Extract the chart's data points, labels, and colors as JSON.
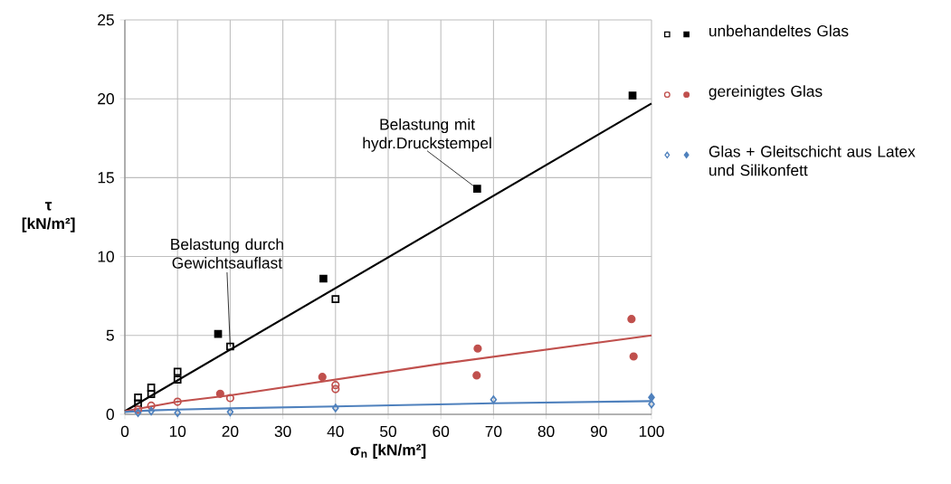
{
  "chart_data": {
    "type": "scatter",
    "xlabel": "σ$_{n}$ [kN/m²]",
    "ylabel": "τ [kN/m²]",
    "xlim": [
      0,
      100
    ],
    "ylim": [
      0,
      25
    ],
    "xticks": [
      0,
      10,
      20,
      30,
      40,
      50,
      60,
      70,
      80,
      90,
      100
    ],
    "yticks": [
      0,
      5,
      10,
      15,
      20,
      25
    ],
    "grid": true,
    "legend": "right",
    "series": [
      {
        "name": "unbehandeltes Glas",
        "type": "scatter",
        "marker": "square",
        "color": "#000000",
        "x": [
          2.5,
          2.5,
          5,
          5,
          10,
          10,
          20,
          40
        ],
        "values": [
          1.07,
          0.7,
          1.7,
          1.28,
          2.7,
          2.2,
          4.3,
          7.3
        ]
      },
      {
        "type": "scatter",
        "marker": "square",
        "color": "#000000",
        "x": [
          17.7,
          37.7,
          66.9,
          96.4
        ],
        "values": [
          5.1,
          8.6,
          14.3,
          20.2
        ]
      },
      {
        "name": "gereinigtes Glas",
        "type": "scatter",
        "marker": "circle",
        "color": "#c0504d",
        "x": [
          2.5,
          5,
          10,
          20,
          40,
          40
        ],
        "values": [
          0.3,
          0.55,
          0.8,
          1.03,
          1.85,
          1.6
        ]
      },
      {
        "type": "scatter",
        "marker": "circle",
        "color": "#c0504d",
        "x": [
          18.1,
          37.5,
          67,
          66.8,
          96.2,
          96.6
        ],
        "values": [
          1.3,
          2.37,
          4.17,
          2.47,
          6.04,
          3.67
        ]
      },
      {
        "name": "Glas + Gleitschicht aus Latex und Silikonfett",
        "type": "scatter",
        "marker": "diamond",
        "color": "#4f81bd",
        "x": [
          2.5,
          5,
          10,
          20,
          40,
          70,
          100
        ],
        "values": [
          0.1,
          0.2,
          0.1,
          0.15,
          0.4,
          0.93,
          0.65
        ]
      },
      {
        "type": "scatter",
        "marker": "diamond",
        "color": "#4f81bd",
        "x": [
          100
        ],
        "values": [
          1.07
        ]
      },
      {
        "type": "line",
        "marker": "none",
        "color": "#000000",
        "x": [
          0,
          100
        ],
        "values": [
          0.2,
          19.7
        ]
      },
      {
        "type": "line",
        "marker": "none",
        "color": "#c0504d",
        "x": [
          0,
          10,
          20,
          40,
          60,
          100
        ],
        "values": [
          0.2,
          0.8,
          1.2,
          2.2,
          3.2,
          5.0
        ]
      },
      {
        "type": "line",
        "marker": "none",
        "color": "#4f81bd",
        "x": [
          0,
          5,
          10,
          20,
          40,
          55,
          70,
          100
        ],
        "values": [
          0.15,
          0.25,
          0.3,
          0.38,
          0.5,
          0.6,
          0.7,
          0.84
        ]
      }
    ],
    "annotations": [
      {
        "text": "Belastung durch Gewichtsauflast",
        "x": 20,
        "y": 4.3
      },
      {
        "text": "Belastung mit hydr.Druckstempel",
        "x": 66.9,
        "y": 14.3
      }
    ]
  }
}
